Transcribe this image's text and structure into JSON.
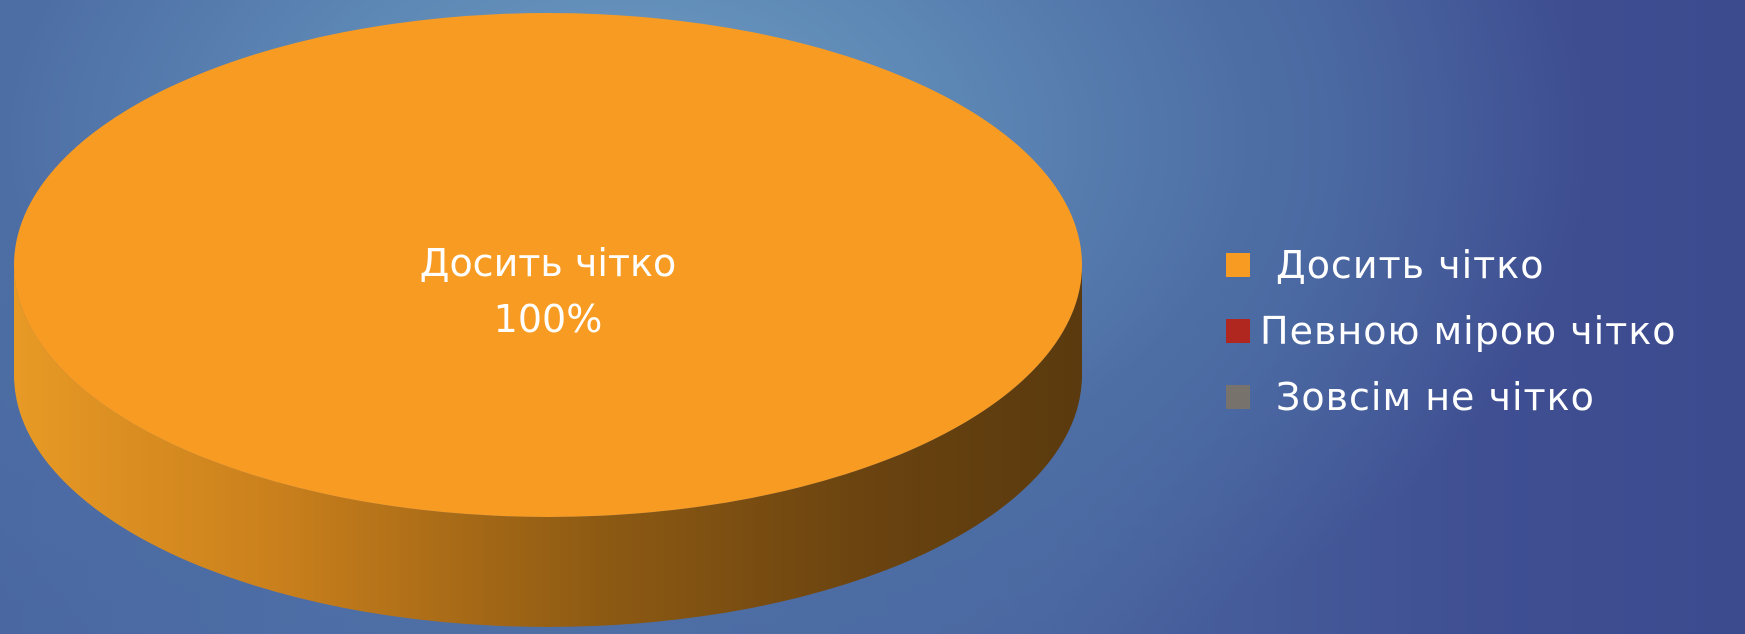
{
  "chart_data": {
    "type": "pie",
    "title": "",
    "categories": [
      "Досить чітко",
      "Певною мірою чітко",
      "Зовсім не чітко"
    ],
    "values": [
      100,
      0,
      0
    ],
    "colors": [
      "#f89b22",
      "#b0271f",
      "#77726b"
    ],
    "data_labels": [
      {
        "category": "Досить чітко",
        "value": "100%"
      }
    ],
    "legend_position": "right",
    "style": "3d"
  }
}
